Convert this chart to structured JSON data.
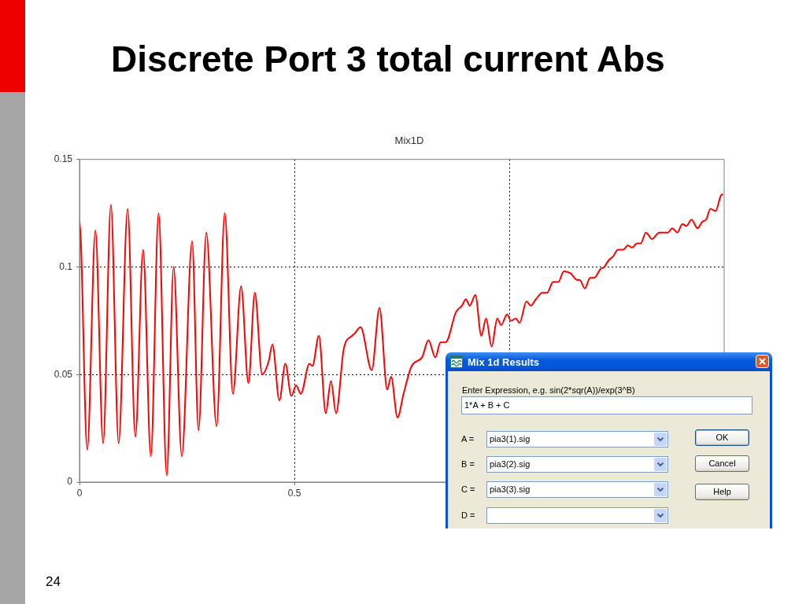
{
  "chart_data": {
    "type": "line",
    "title": "Discrete Port 3 total current Abs",
    "subtitle": "Mix1D",
    "x": [
      0,
      0.003,
      0.018,
      0.037,
      0.055,
      0.073,
      0.091,
      0.112,
      0.13,
      0.148,
      0.166,
      0.184,
      0.203,
      0.219,
      0.238,
      0.262,
      0.277,
      0.295,
      0.319,
      0.338,
      0.357,
      0.376,
      0.393,
      0.408,
      0.425,
      0.44,
      0.449,
      0.465,
      0.479,
      0.493,
      0.504,
      0.515,
      0.535,
      0.542,
      0.557,
      0.573,
      0.585,
      0.597,
      0.615,
      0.634,
      0.64,
      0.654,
      0.68,
      0.698,
      0.716,
      0.725,
      0.74,
      0.754,
      0.773,
      0.797,
      0.812,
      0.828,
      0.84,
      0.852,
      0.876,
      0.89,
      0.899,
      0.908,
      0.921,
      0.935,
      0.946,
      0.959,
      0.972,
      0.981,
      0.995,
      1.004,
      1.015,
      1.024,
      1.04,
      1.05,
      1.062,
      1.077,
      1.088,
      1.102,
      1.114,
      1.127,
      1.143,
      1.158,
      1.164,
      1.176,
      1.188,
      1.198,
      1.212,
      1.221,
      1.231,
      1.242,
      1.253,
      1.265,
      1.276,
      1.286,
      1.297,
      1.306,
      1.318,
      1.332,
      1.349,
      1.369,
      1.379,
      1.391,
      1.403,
      1.412,
      1.424,
      1.438,
      1.449,
      1.458,
      1.468,
      1.48,
      1.492,
      1.497
    ],
    "values": [
      0.121,
      0.113,
      0.015,
      0.117,
      0.018,
      0.129,
      0.018,
      0.127,
      0.021,
      0.108,
      0.012,
      0.125,
      0.003,
      0.1,
      0.012,
      0.112,
      0.024,
      0.116,
      0.026,
      0.125,
      0.041,
      0.091,
      0.046,
      0.088,
      0.05,
      0.056,
      0.064,
      0.038,
      0.055,
      0.04,
      0.045,
      0.041,
      0.055,
      0.054,
      0.068,
      0.032,
      0.047,
      0.032,
      0.062,
      0.068,
      0.069,
      0.072,
      0.052,
      0.081,
      0.043,
      0.049,
      0.03,
      0.041,
      0.054,
      0.058,
      0.066,
      0.058,
      0.065,
      0.065,
      0.079,
      0.082,
      0.085,
      0.082,
      0.087,
      0.068,
      0.076,
      0.063,
      0.076,
      0.073,
      0.078,
      0.075,
      0.076,
      0.074,
      0.084,
      0.082,
      0.085,
      0.088,
      0.088,
      0.093,
      0.093,
      0.098,
      0.097,
      0.094,
      0.094,
      0.09,
      0.095,
      0.095,
      0.099,
      0.1,
      0.103,
      0.105,
      0.108,
      0.108,
      0.11,
      0.109,
      0.111,
      0.111,
      0.116,
      0.113,
      0.116,
      0.116,
      0.118,
      0.116,
      0.12,
      0.119,
      0.122,
      0.118,
      0.121,
      0.122,
      0.127,
      0.126,
      0.133,
      0.134
    ],
    "color": "#ff0000",
    "xlim": [
      0,
      1.5
    ],
    "xticks": [
      0,
      0.5,
      {
        "value": 1,
        "label": null
      }
    ],
    "ylim": [
      0,
      0.15
    ],
    "yticks": [
      0,
      0.05,
      0.1,
      0.15
    ],
    "grid": true,
    "annotations": [
      "24",
      "Mix 1d Results",
      "Enter Expression, e.g. sin(2*sqr(A))/exp(3^B)",
      "1*A + B + C",
      "A =",
      "pia3(1).sig",
      "B =",
      "pia3(2).sig",
      "C =",
      "pia3(3).sig",
      "D =",
      "OK",
      "Cancel",
      "Help"
    ]
  }
}
